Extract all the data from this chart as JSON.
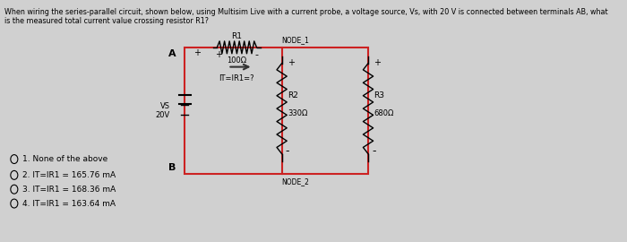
{
  "title1": "When wiring the series-parallel circuit, shown below, using Multisim Live with a current probe, a voltage source, Vs, with 20 V is connected between terminals AB, what",
  "title2": "is the measured total current value crossing resistor R1?",
  "bg_color": "#d0d0d0",
  "box_color": "#cc2222",
  "options": [
    "O 1. None of the above",
    "O 2. IT=IR1 = 165.76 mA",
    "O 3. IT=IR1 = 168.36 mA",
    "O 4. IT=IR1 = 163.64 mA"
  ],
  "circuit": {
    "r1_label": "R1",
    "r1_val": "100Ω",
    "r2_label": "R2",
    "r2_val": "330Ω",
    "r3_label": "R3",
    "r3_val": "680Ω",
    "vs_label": "VS",
    "vs_val": "20V",
    "node1": "NODE_1",
    "node2": "NODE_2",
    "it_label": "IT=IR1=?",
    "a_label": "A",
    "b_label": "B"
  }
}
